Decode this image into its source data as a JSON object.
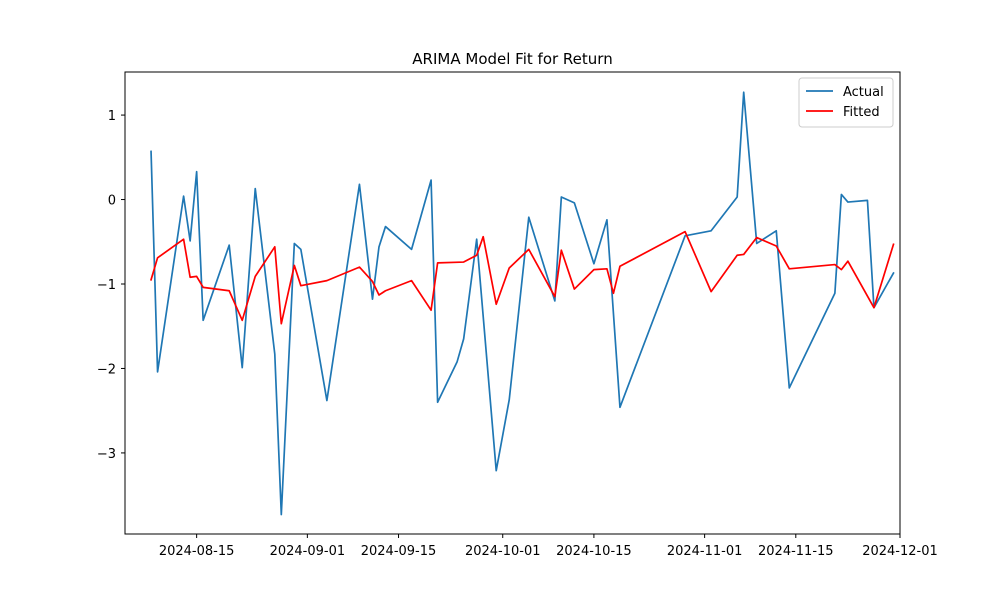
{
  "chart_data": {
    "type": "line",
    "title": "ARIMA Model Fit for Return",
    "xlabel": "",
    "ylabel": "",
    "x_axis_type": "date",
    "xlim": [
      "2024-08-04",
      "2024-12-01"
    ],
    "ylim": [
      -3.96,
      1.51
    ],
    "x_ticks": [
      "2024-08-15",
      "2024-09-01",
      "2024-09-15",
      "2024-10-01",
      "2024-10-15",
      "2024-11-01",
      "2024-11-15",
      "2024-12-01"
    ],
    "y_ticks": [
      1,
      0,
      -1,
      -2,
      -3
    ],
    "y_tick_labels": [
      "1",
      "0",
      "−1",
      "−2",
      "−3"
    ],
    "grid": false,
    "legend_position": "top-right",
    "series": [
      {
        "name": "Actual",
        "color": "#1f77b4",
        "points": [
          [
            "2024-08-08",
            0.57
          ],
          [
            "2024-08-09",
            -2.04
          ],
          [
            "2024-08-13",
            0.04
          ],
          [
            "2024-08-14",
            -0.49
          ],
          [
            "2024-08-15",
            0.33
          ],
          [
            "2024-08-16",
            -1.43
          ],
          [
            "2024-08-20",
            -0.54
          ],
          [
            "2024-08-22",
            -1.99
          ],
          [
            "2024-08-24",
            0.13
          ],
          [
            "2024-08-27",
            -1.83
          ],
          [
            "2024-08-28",
            -3.73
          ],
          [
            "2024-08-30",
            -0.52
          ],
          [
            "2024-08-31",
            -0.59
          ],
          [
            "2024-09-04",
            -2.38
          ],
          [
            "2024-09-09",
            0.18
          ],
          [
            "2024-09-11",
            -1.18
          ],
          [
            "2024-09-12",
            -0.56
          ],
          [
            "2024-09-13",
            -0.32
          ],
          [
            "2024-09-17",
            -0.59
          ],
          [
            "2024-09-20",
            0.23
          ],
          [
            "2024-09-21",
            -2.4
          ],
          [
            "2024-09-24",
            -1.92
          ],
          [
            "2024-09-25",
            -1.65
          ],
          [
            "2024-09-27",
            -0.47
          ],
          [
            "2024-09-30",
            -3.21
          ],
          [
            "2024-10-02",
            -2.37
          ],
          [
            "2024-10-05",
            -0.21
          ],
          [
            "2024-10-09",
            -1.2
          ],
          [
            "2024-10-10",
            0.03
          ],
          [
            "2024-10-12",
            -0.04
          ],
          [
            "2024-10-15",
            -0.76
          ],
          [
            "2024-10-17",
            -0.24
          ],
          [
            "2024-10-19",
            -2.46
          ],
          [
            "2024-10-29",
            -0.43
          ],
          [
            "2024-11-02",
            -0.37
          ],
          [
            "2024-11-06",
            0.03
          ],
          [
            "2024-11-07",
            1.27
          ],
          [
            "2024-11-09",
            -0.52
          ],
          [
            "2024-11-12",
            -0.37
          ],
          [
            "2024-11-14",
            -2.23
          ],
          [
            "2024-11-21",
            -1.11
          ],
          [
            "2024-11-22",
            0.06
          ],
          [
            "2024-11-23",
            -0.03
          ],
          [
            "2024-11-26",
            -0.01
          ],
          [
            "2024-11-27",
            -1.28
          ],
          [
            "2024-11-30",
            -0.87
          ]
        ]
      },
      {
        "name": "Fitted",
        "color": "#ff0000",
        "points": [
          [
            "2024-08-08",
            -0.95
          ],
          [
            "2024-08-09",
            -0.69
          ],
          [
            "2024-08-13",
            -0.47
          ],
          [
            "2024-08-14",
            -0.92
          ],
          [
            "2024-08-15",
            -0.91
          ],
          [
            "2024-08-16",
            -1.04
          ],
          [
            "2024-08-20",
            -1.08
          ],
          [
            "2024-08-22",
            -1.43
          ],
          [
            "2024-08-24",
            -0.91
          ],
          [
            "2024-08-27",
            -0.56
          ],
          [
            "2024-08-28",
            -1.47
          ],
          [
            "2024-08-30",
            -0.78
          ],
          [
            "2024-08-31",
            -1.02
          ],
          [
            "2024-09-04",
            -0.96
          ],
          [
            "2024-09-09",
            -0.8
          ],
          [
            "2024-09-11",
            -0.97
          ],
          [
            "2024-09-12",
            -1.13
          ],
          [
            "2024-09-13",
            -1.08
          ],
          [
            "2024-09-17",
            -0.96
          ],
          [
            "2024-09-20",
            -1.31
          ],
          [
            "2024-09-21",
            -0.75
          ],
          [
            "2024-09-25",
            -0.74
          ],
          [
            "2024-09-27",
            -0.66
          ],
          [
            "2024-09-28",
            -0.44
          ],
          [
            "2024-09-30",
            -1.24
          ],
          [
            "2024-10-02",
            -0.81
          ],
          [
            "2024-10-05",
            -0.59
          ],
          [
            "2024-10-09",
            -1.15
          ],
          [
            "2024-10-10",
            -0.6
          ],
          [
            "2024-10-12",
            -1.06
          ],
          [
            "2024-10-15",
            -0.83
          ],
          [
            "2024-10-17",
            -0.82
          ],
          [
            "2024-10-18",
            -1.11
          ],
          [
            "2024-10-19",
            -0.79
          ],
          [
            "2024-10-29",
            -0.38
          ],
          [
            "2024-11-02",
            -1.09
          ],
          [
            "2024-11-06",
            -0.66
          ],
          [
            "2024-11-07",
            -0.65
          ],
          [
            "2024-11-09",
            -0.45
          ],
          [
            "2024-11-12",
            -0.55
          ],
          [
            "2024-11-14",
            -0.82
          ],
          [
            "2024-11-21",
            -0.77
          ],
          [
            "2024-11-22",
            -0.83
          ],
          [
            "2024-11-23",
            -0.73
          ],
          [
            "2024-11-27",
            -1.28
          ],
          [
            "2024-11-30",
            -0.53
          ]
        ]
      }
    ]
  }
}
